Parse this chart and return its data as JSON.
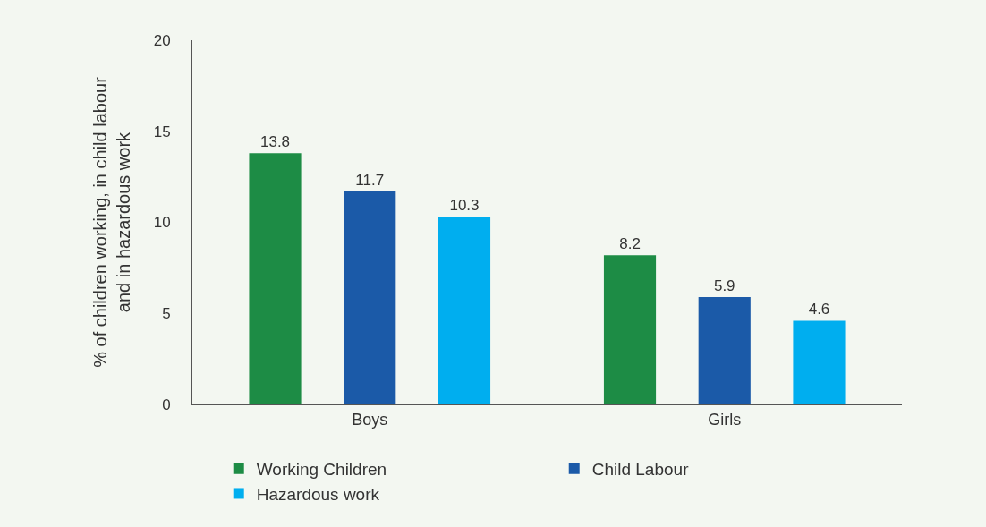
{
  "chart_data": {
    "type": "bar",
    "ylabel": "% of children working, in child labour and in hazardous work",
    "categories": [
      "Boys",
      "Girls"
    ],
    "series": [
      {
        "name": "Working Children",
        "color": "#1d8c45",
        "values": [
          13.8,
          8.2
        ]
      },
      {
        "name": "Child Labour",
        "color": "#1b5aa8",
        "values": [
          11.7,
          5.9
        ]
      },
      {
        "name": "Hazardous work",
        "color": "#00aeef",
        "values": [
          10.3,
          4.6
        ]
      }
    ],
    "ylim": [
      0,
      20
    ],
    "yticks": [
      0,
      5,
      10,
      15,
      20
    ],
    "data_labels": true,
    "grid": false,
    "legend": "bottom"
  }
}
